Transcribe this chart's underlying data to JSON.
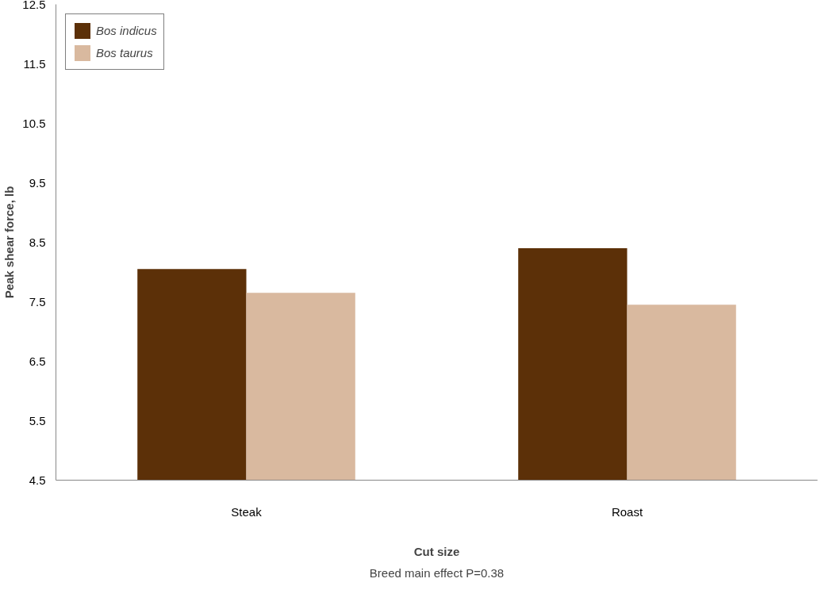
{
  "chart_data": {
    "type": "bar",
    "xlabel": "Cut size",
    "ylabel": "Peak shear force, lb",
    "categories": [
      "Steak",
      "Roast"
    ],
    "series": [
      {
        "name": "Bos indicus",
        "color": "#5c3008",
        "values": [
          8.05,
          8.4
        ]
      },
      {
        "name": "Bos taurus",
        "color": "#d9b99f",
        "values": [
          7.65,
          7.45
        ]
      }
    ],
    "ylim": [
      4.5,
      12.5
    ],
    "yticks": [
      4.5,
      5.5,
      6.5,
      7.5,
      8.5,
      9.5,
      10.5,
      11.5,
      12.5
    ],
    "grid": false,
    "legend": "top left",
    "annotations": [
      "Breed main effect P=0.38"
    ]
  }
}
